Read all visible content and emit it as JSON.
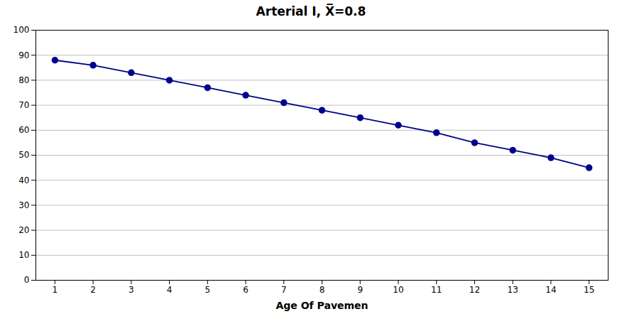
{
  "chart_data": {
    "type": "line",
    "title": "Arterial I, X̅=0.8",
    "xlabel": "Age Of Pavemen",
    "x": [
      1,
      2,
      3,
      4,
      5,
      6,
      7,
      8,
      9,
      10,
      11,
      12,
      13,
      14,
      15
    ],
    "values": [
      88,
      86,
      83,
      80,
      77,
      74,
      71,
      68,
      65,
      62,
      59,
      55,
      52,
      49,
      45
    ],
    "color": "#00008B",
    "marker": "o",
    "xlim": [
      0.5,
      15.5
    ],
    "ylim": [
      0,
      100
    ],
    "xticks": [
      1,
      2,
      3,
      4,
      5,
      6,
      7,
      8,
      9,
      10,
      11,
      12,
      13,
      14,
      15
    ],
    "yticks": [
      0,
      10,
      20,
      30,
      40,
      50,
      60,
      70,
      80,
      90,
      100
    ],
    "grid": "y"
  }
}
